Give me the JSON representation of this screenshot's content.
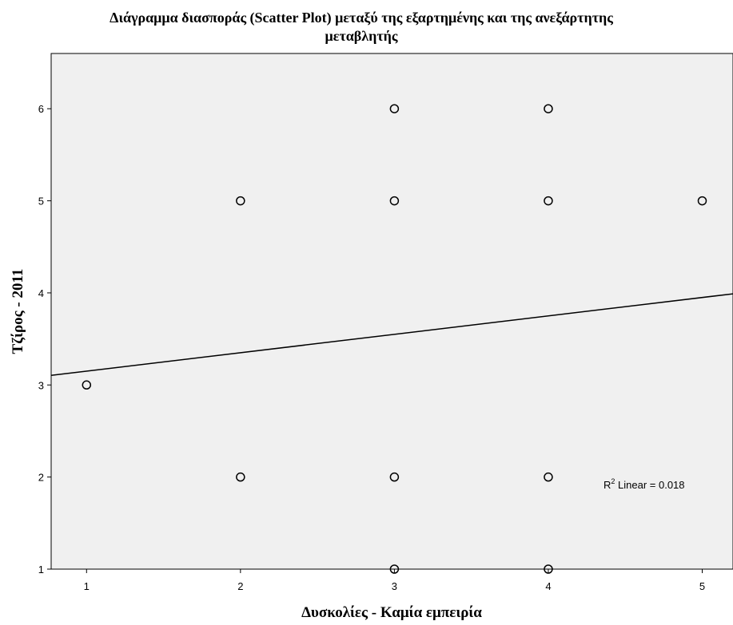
{
  "chart_data": {
    "type": "scatter",
    "title_line1": "Διάγραμμα διασποράς (Scatter Plot) μεταξύ της εξαρτημένης και της ανεξάρτητης",
    "title_line2": "μεταβλητής",
    "xlabel": "Δυσκολίες - Καμία εμπειρία",
    "ylabel": "Τζίρος - 2011",
    "xlim": [
      0.77,
      5.2
    ],
    "ylim": [
      1,
      6.6
    ],
    "xticks": [
      "1",
      "2",
      "3",
      "4",
      "5"
    ],
    "yticks": [
      "1",
      "2",
      "3",
      "4",
      "5",
      "6"
    ],
    "grid": false,
    "background": "#f0f0f0",
    "points": [
      {
        "x": 1,
        "y": 3
      },
      {
        "x": 2,
        "y": 5
      },
      {
        "x": 2,
        "y": 2
      },
      {
        "x": 3,
        "y": 6
      },
      {
        "x": 3,
        "y": 5
      },
      {
        "x": 3,
        "y": 2
      },
      {
        "x": 3,
        "y": 1
      },
      {
        "x": 4,
        "y": 6
      },
      {
        "x": 4,
        "y": 5
      },
      {
        "x": 4,
        "y": 2
      },
      {
        "x": 4,
        "y": 1
      },
      {
        "x": 5,
        "y": 5
      }
    ],
    "fit_line": {
      "intercept": 2.95,
      "slope": 0.2
    },
    "annotation": {
      "prefix": "R",
      "superscript": "2",
      "suffix": " Linear = 0.018"
    }
  }
}
